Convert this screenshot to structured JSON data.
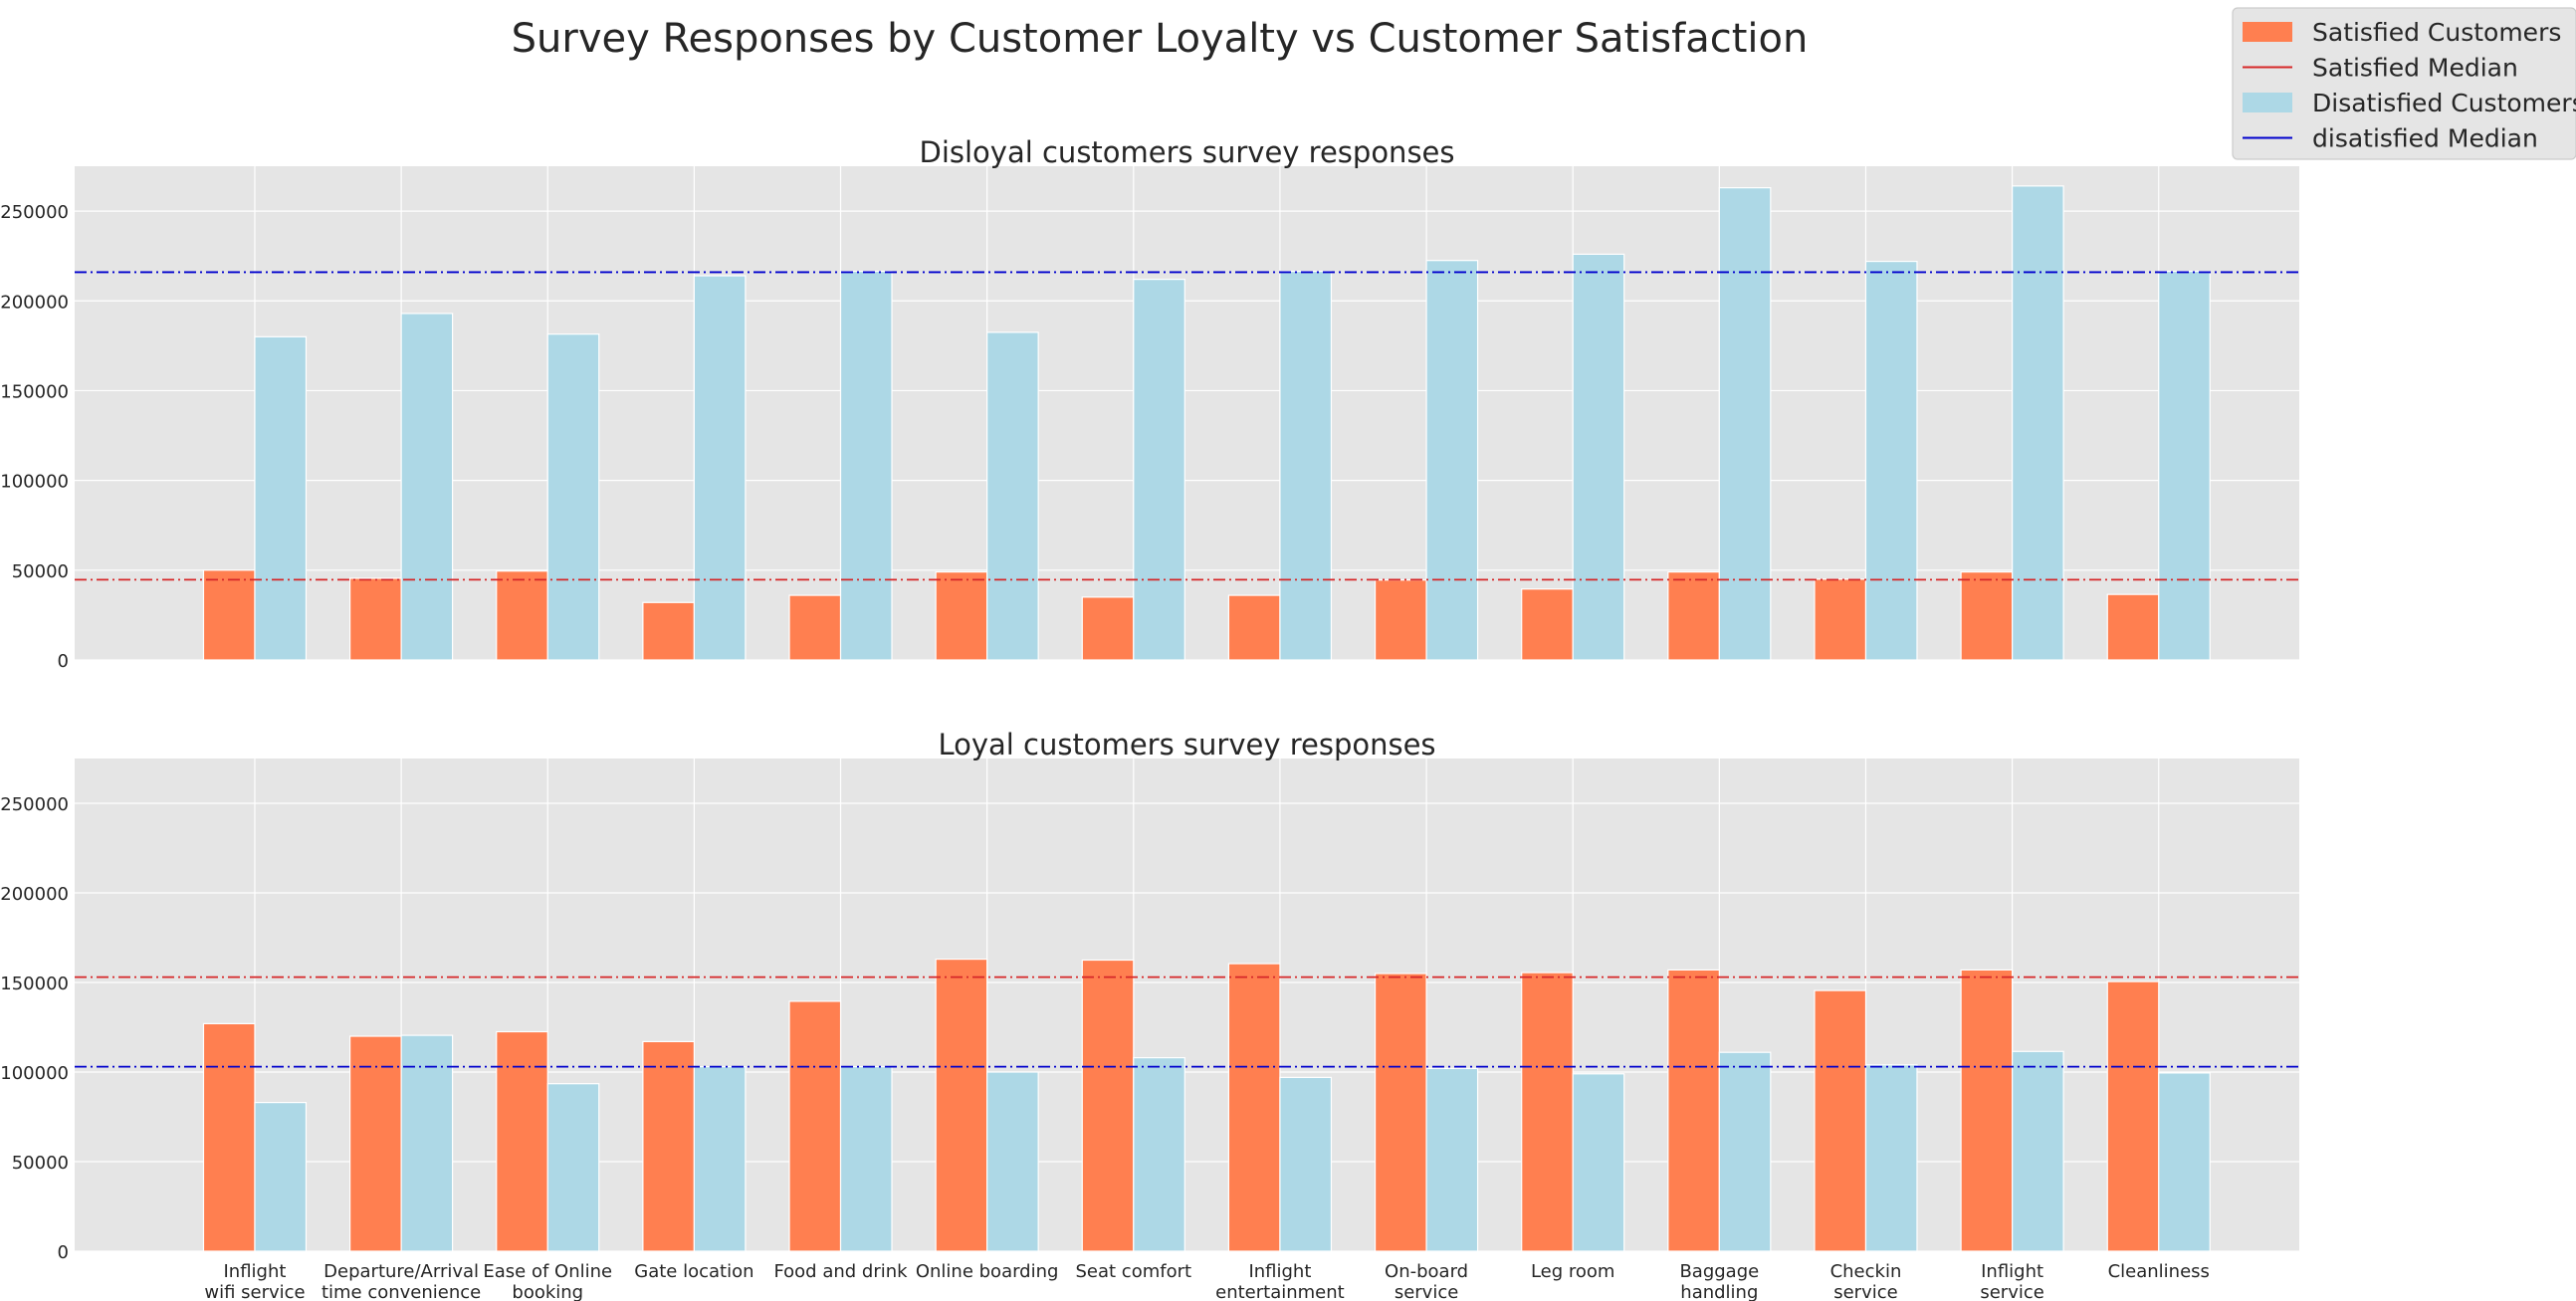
{
  "title": "Survey Responses by Customer Loyalty vs Customer Satisfaction",
  "legend": {
    "placement": "top-right",
    "items": [
      {
        "label": "Satisfied Customers",
        "kind": "bar",
        "color": "#ff7f50"
      },
      {
        "label": "Satisfied Median",
        "kind": "line",
        "color": "#d62728"
      },
      {
        "label": "Disatisfied Customers",
        "kind": "bar",
        "color": "#add8e6"
      },
      {
        "label": "disatisfied Median",
        "kind": "line",
        "color": "#0000cd"
      }
    ]
  },
  "colors": {
    "satisfied": "#ff7f50",
    "dissatisfied": "#add8e6",
    "satisfied_median": "#d62728",
    "dissatisfied_median": "#0000cd",
    "plot_background": "#e5e5e5",
    "grid": "#ffffff"
  },
  "chart_data": [
    {
      "type": "bar",
      "title": "Disloyal customers survey responses",
      "categories": [
        "Inflight\nwifi service",
        "Departure/Arrival\ntime convenience",
        "Ease of Online\nbooking",
        "Gate location",
        "Food and drink",
        "Online boarding",
        "Seat comfort",
        "Inflight\nentertainment",
        "On-board\nservice",
        "Leg room",
        "Baggage\nhandling",
        "Checkin\nservice",
        "Inflight\nservice",
        "Cleanliness"
      ],
      "show_xticklabels": false,
      "series": [
        {
          "name": "Satisfied Customers",
          "values": [
            50000,
            45500,
            49500,
            32000,
            36000,
            49000,
            35000,
            36000,
            44500,
            39500,
            49000,
            45000,
            49000,
            36500
          ]
        },
        {
          "name": "Disatisfied Customers",
          "values": [
            180000,
            193000,
            181500,
            214000,
            216500,
            182500,
            212000,
            216500,
            222500,
            226000,
            263000,
            222000,
            264000,
            216500
          ]
        }
      ],
      "medians": {
        "satisfied": 44700,
        "dissatisfied": 216000
      },
      "ylim": [
        0,
        275000
      ],
      "yticks": [
        0,
        50000,
        100000,
        150000,
        200000,
        250000
      ],
      "grid": true
    },
    {
      "type": "bar",
      "title": "Loyal customers survey responses",
      "categories": [
        "Inflight\nwifi service",
        "Departure/Arrival\ntime convenience",
        "Ease of Online\nbooking",
        "Gate location",
        "Food and drink",
        "Online boarding",
        "Seat comfort",
        "Inflight\nentertainment",
        "On-board\nservice",
        "Leg room",
        "Baggage\nhandling",
        "Checkin\nservice",
        "Inflight\nservice",
        "Cleanliness"
      ],
      "show_xticklabels": true,
      "series": [
        {
          "name": "Satisfied Customers",
          "values": [
            127000,
            120000,
            122500,
            117000,
            139500,
            163000,
            162500,
            160500,
            155000,
            155500,
            157000,
            145500,
            157000,
            150500
          ]
        },
        {
          "name": "Disatisfied Customers",
          "values": [
            83000,
            120500,
            93500,
            103000,
            103000,
            100000,
            108000,
            97000,
            102000,
            99000,
            111000,
            104000,
            111500,
            99500
          ]
        }
      ],
      "medians": {
        "satisfied": 153000,
        "dissatisfied": 103000
      },
      "ylim": [
        0,
        275000
      ],
      "yticks": [
        0,
        50000,
        100000,
        150000,
        200000,
        250000
      ],
      "grid": true
    }
  ]
}
